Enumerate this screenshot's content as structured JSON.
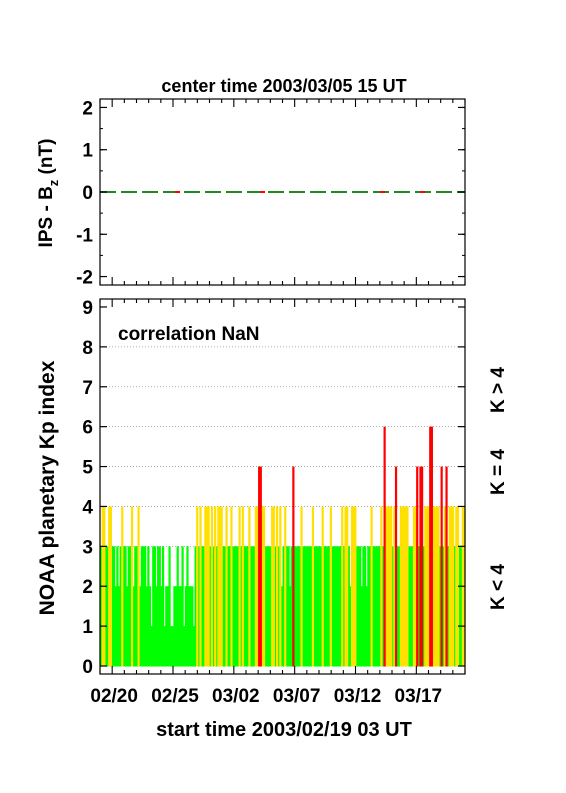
{
  "colors": {
    "green": "#00ff00",
    "yellow": "#ffe000",
    "red": "#ff0000",
    "zero_dash": "#228822"
  },
  "top_panel": {
    "title": "center time 2003/03/05 15 UT",
    "ylabel_main": "IPS - B",
    "ylabel_sub": "z",
    "ylabel_unit": " (nT)",
    "ylim": [
      -2.2,
      2.2
    ],
    "yticks": [
      "2",
      "1",
      "0",
      "-1",
      "-2"
    ],
    "line_value": 0,
    "line_note": "dashed zero line, mostly dark green with short red segments"
  },
  "bottom_panel": {
    "annotation": "correlation NaN",
    "ylabel": "NOAA planetary Kp index",
    "xlabel": "start time 2003/02/19 03 UT",
    "xticks": [
      "02/20",
      "02/25",
      "03/02",
      "03/07",
      "03/12",
      "03/17"
    ],
    "xtick_days": [
      1,
      6,
      11,
      16,
      21,
      26
    ],
    "yticks": [
      "0",
      "1",
      "2",
      "3",
      "4",
      "5",
      "6",
      "7",
      "8",
      "9"
    ],
    "legend": [
      "K < 4",
      "K = 4",
      "K > 4"
    ]
  },
  "chart_data": {
    "type": "bar",
    "x_unit": "days from 2003/02/19 03 UT, 3-hourly Kp",
    "xlim": [
      0,
      30
    ],
    "ylim": [
      -0.2,
      9.2
    ],
    "thresholds": {
      "green_below": 4,
      "yellow_equal": 4,
      "red_above": 4
    },
    "values": [
      3,
      4,
      4,
      3,
      3,
      4,
      4,
      3,
      3,
      2,
      3,
      2,
      3,
      4,
      3,
      3,
      2,
      3,
      3,
      4,
      2,
      3,
      3,
      4,
      2,
      3,
      3,
      3,
      2,
      3,
      2,
      1,
      3,
      3,
      2,
      3,
      3,
      2,
      3,
      1,
      2,
      2,
      3,
      1,
      1,
      2,
      2,
      3,
      2,
      2,
      3,
      1,
      2,
      3,
      2,
      2,
      2,
      1,
      3,
      4,
      3,
      4,
      3,
      3,
      4,
      4,
      4,
      3,
      4,
      3,
      4,
      3,
      4,
      4,
      4,
      3,
      3,
      4,
      3,
      3,
      4,
      3,
      3,
      3,
      3,
      4,
      3,
      4,
      3,
      3,
      3,
      4,
      3,
      3,
      3,
      4,
      4,
      5,
      5,
      4,
      4,
      3,
      3,
      3,
      3,
      4,
      4,
      3,
      4,
      3,
      4,
      2,
      3,
      4,
      3,
      3,
      2,
      3,
      5,
      3,
      3,
      3,
      3,
      4,
      3,
      3,
      3,
      3,
      3,
      3,
      4,
      3,
      3,
      3,
      3,
      3,
      4,
      3,
      3,
      3,
      3,
      4,
      3,
      3,
      3,
      3,
      3,
      3,
      4,
      3,
      4,
      4,
      3,
      2,
      4,
      4,
      4,
      3,
      3,
      3,
      2,
      3,
      3,
      2,
      3,
      3,
      4,
      3,
      3,
      3,
      3,
      3,
      4,
      3,
      6,
      4,
      4,
      4,
      4,
      3,
      4,
      5,
      3,
      3,
      4,
      4,
      4,
      4,
      4,
      3,
      3,
      3,
      4,
      4,
      5,
      3,
      5,
      5,
      3,
      4,
      4,
      4,
      6,
      6,
      4,
      4,
      4,
      4,
      3,
      5,
      3,
      4,
      5,
      3,
      4,
      4,
      4,
      3,
      4,
      4,
      3,
      3,
      4,
      4
    ]
  }
}
